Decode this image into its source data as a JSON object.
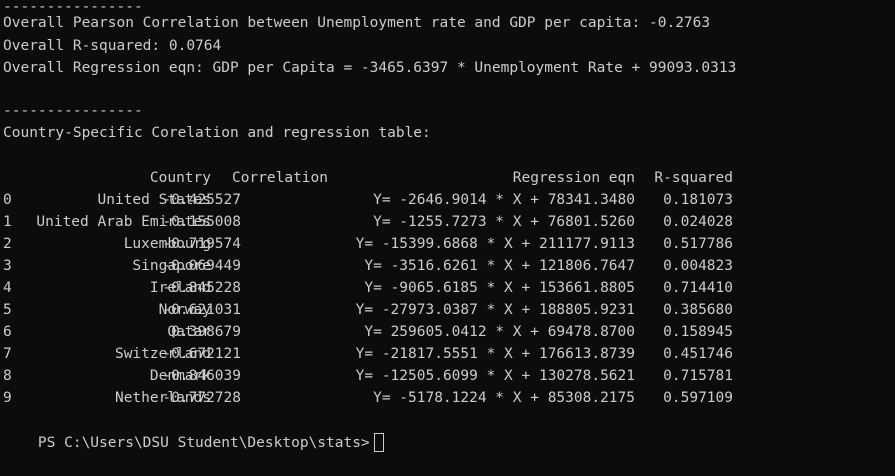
{
  "summary": {
    "divider1": "----------------",
    "pearson": "Overall Pearson Correlation between Unemployment rate and GDP per capita: -0.2763",
    "rsquared": "Overall R-squared: 0.0764",
    "regression": "Overall Regression eqn: GDP per Capita = -3465.6397 * Unemployment Rate + 99093.0313",
    "divider2": "----------------",
    "table_title": "Country-Specific Corelation and regression table:"
  },
  "table": {
    "headers": {
      "country": "Country",
      "correlation": "Correlation",
      "regression": "Regression eqn",
      "rsquared": "R-squared"
    },
    "rows": [
      {
        "index": "0",
        "country": "United States",
        "correlation": "-0.425527",
        "regression": "Y= -2646.9014 * X + 78341.3480",
        "rsquared": "0.181073"
      },
      {
        "index": "1",
        "country": "United Arab Emirates",
        "correlation": "-0.155008",
        "regression": "Y= -1255.7273 * X + 76801.5260",
        "rsquared": "0.024028"
      },
      {
        "index": "2",
        "country": "Luxembourg",
        "correlation": "-0.719574",
        "regression": "Y= -15399.6868 * X + 211177.9113",
        "rsquared": "0.517786"
      },
      {
        "index": "3",
        "country": "Singapore",
        "correlation": "-0.069449",
        "regression": "Y= -3516.6261 * X + 121806.7647",
        "rsquared": "0.004823"
      },
      {
        "index": "4",
        "country": "Ireland",
        "correlation": "-0.845228",
        "regression": "Y= -9065.6185 * X + 153661.8805",
        "rsquared": "0.714410"
      },
      {
        "index": "5",
        "country": "Norway",
        "correlation": "-0.621031",
        "regression": "Y= -27973.0387 * X + 188805.9231",
        "rsquared": "0.385680"
      },
      {
        "index": "6",
        "country": "Qatar",
        "correlation": "0.398679",
        "regression": "Y= 259605.0412 * X + 69478.8700",
        "rsquared": "0.158945"
      },
      {
        "index": "7",
        "country": "Switzerland",
        "correlation": "-0.672121",
        "regression": "Y= -21817.5551 * X + 176613.8739",
        "rsquared": "0.451746"
      },
      {
        "index": "8",
        "country": "Denmark",
        "correlation": "-0.846039",
        "regression": "Y= -12505.6099 * X + 130278.5621",
        "rsquared": "0.715781"
      },
      {
        "index": "9",
        "country": "Netherlands",
        "correlation": "-0.772728",
        "regression": "Y= -5178.1224 * X + 85308.2175",
        "rsquared": "0.597109"
      }
    ]
  },
  "prompt": {
    "text": "PS C:\\Users\\DSU Student\\Desktop\\stats>"
  },
  "colors": {
    "background": "#0c0c0c",
    "foreground": "#cccccc"
  }
}
